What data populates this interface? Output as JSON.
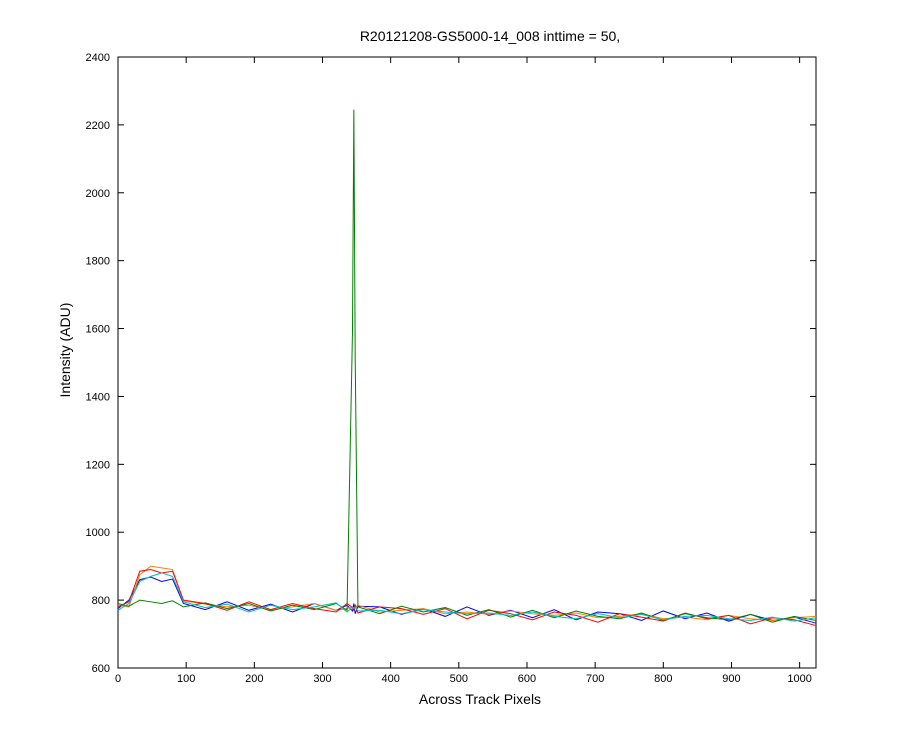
{
  "chart_data": {
    "type": "line",
    "title": "R20121208-GS5000-14_008 inttime = 50,",
    "x_label": "Across Track Pixels",
    "y_label": "Intensity (ADU)",
    "xlim": [
      0,
      1024
    ],
    "ylim": [
      600,
      2400
    ],
    "xticks": [
      0,
      100,
      200,
      300,
      400,
      500,
      600,
      700,
      800,
      900,
      1000
    ],
    "yticks": [
      600,
      800,
      1000,
      1200,
      1400,
      1600,
      1800,
      2000,
      2200,
      2400
    ],
    "grid": false,
    "x": [
      0,
      16,
      32,
      48,
      64,
      80,
      96,
      128,
      160,
      192,
      224,
      256,
      288,
      320,
      336,
      344,
      346,
      348,
      352,
      384,
      416,
      448,
      480,
      512,
      544,
      576,
      608,
      640,
      672,
      704,
      736,
      768,
      800,
      832,
      864,
      896,
      928,
      960,
      992,
      1024
    ],
    "series": [
      {
        "color": "#0000ff",
        "values": [
          775,
          800,
          860,
          868,
          855,
          862,
          790,
          772,
          795,
          770,
          788,
          765,
          790,
          770,
          785,
          768,
          790,
          760,
          782,
          780,
          758,
          775,
          752,
          780,
          755,
          770,
          748,
          772,
          742,
          765,
          760,
          740,
          768,
          745,
          762,
          738,
          758,
          740,
          750,
          732
        ]
      },
      {
        "color": "#ff8000",
        "values": [
          785,
          780,
          875,
          900,
          895,
          890,
          798,
          788,
          780,
          785,
          770,
          780,
          790,
          770,
          775,
          780,
          772,
          778,
          785,
          765,
          770,
          775,
          760,
          765,
          758,
          768,
          760,
          755,
          762,
          748,
          752,
          760,
          745,
          750,
          742,
          755,
          745,
          740,
          748,
          752
        ]
      },
      {
        "color": "#ff0000",
        "values": [
          780,
          795,
          885,
          890,
          880,
          885,
          800,
          790,
          770,
          795,
          772,
          790,
          775,
          765,
          790,
          778,
          770,
          785,
          762,
          780,
          775,
          758,
          775,
          745,
          770,
          760,
          742,
          765,
          755,
          735,
          760,
          750,
          738,
          762,
          745,
          755,
          730,
          748,
          742,
          725
        ]
      },
      {
        "color": "#008000",
        "values": [
          790,
          782,
          800,
          795,
          790,
          798,
          780,
          792,
          775,
          790,
          768,
          785,
          772,
          790,
          770,
          1590,
          2245,
          1510,
          780,
          760,
          782,
          765,
          778,
          755,
          772,
          750,
          770,
          748,
          768,
          752,
          745,
          762,
          740,
          760,
          748,
          742,
          758,
          735,
          752,
          740
        ]
      },
      {
        "color": "#00bfbf",
        "values": [
          770,
          790,
          855,
          870,
          880,
          870,
          795,
          778,
          788,
          765,
          785,
          772,
          780,
          792,
          765,
          780,
          775,
          780,
          768,
          770,
          760,
          772,
          765,
          760,
          762,
          755,
          765,
          752,
          745,
          760,
          748,
          758,
          742,
          752,
          755,
          745,
          740,
          750,
          738,
          748
        ]
      }
    ]
  }
}
